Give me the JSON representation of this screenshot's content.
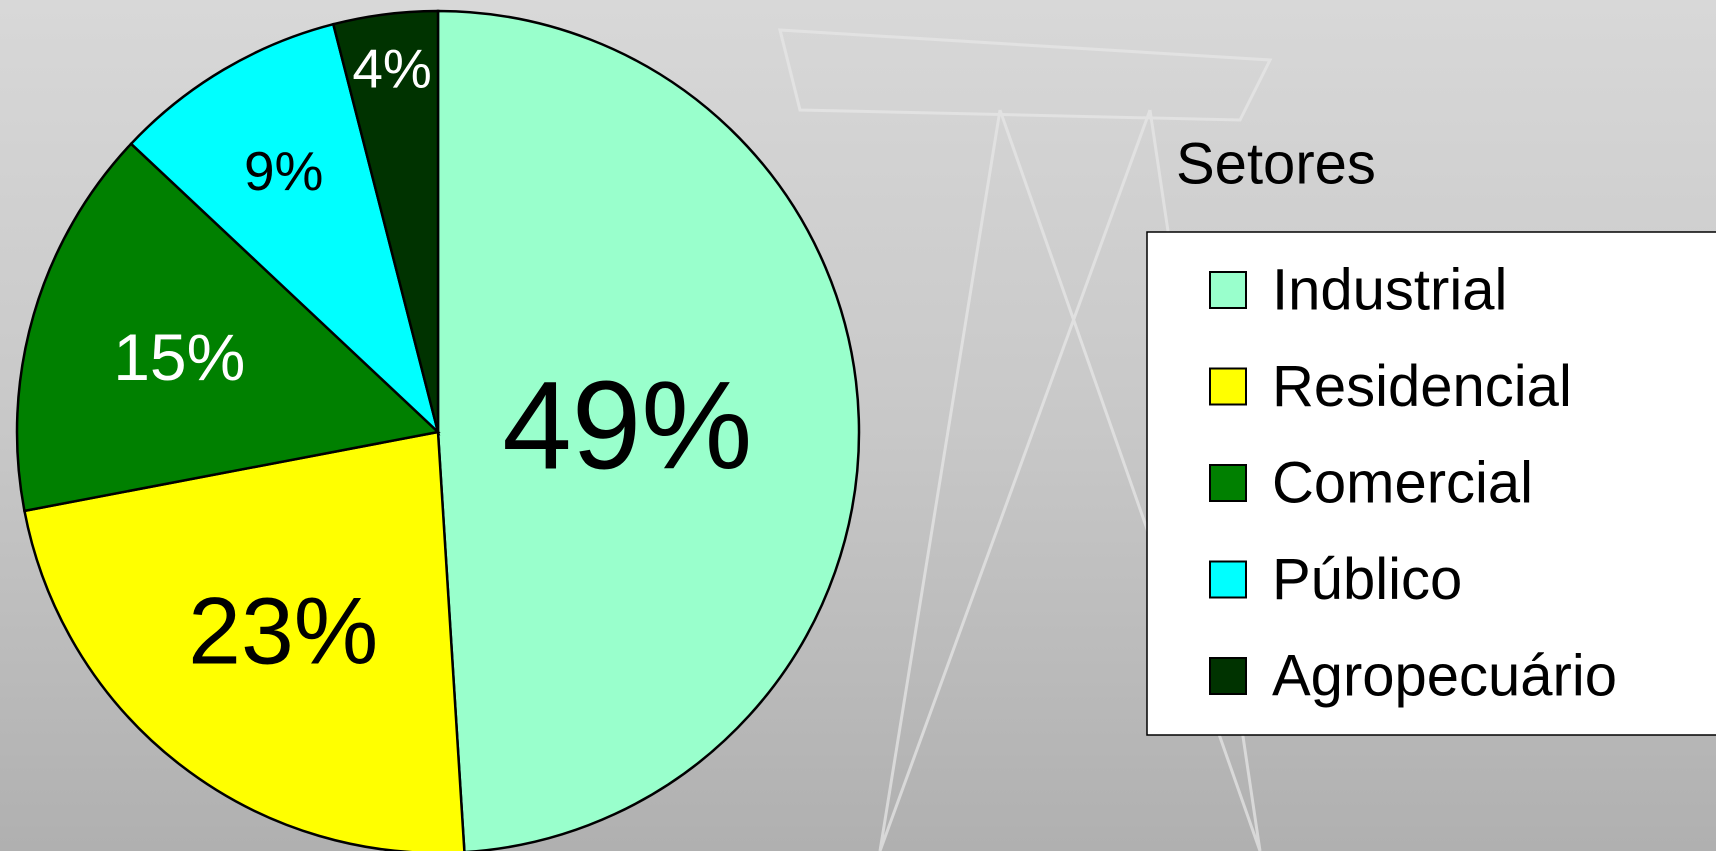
{
  "chart_data": {
    "type": "pie",
    "legend_title": "Setores",
    "categories": [
      "Industrial",
      "Residencial",
      "Comercial",
      "Público",
      "Agropecuário"
    ],
    "values": [
      49,
      23,
      15,
      9,
      4
    ],
    "value_labels": [
      "49%",
      "23%",
      "15%",
      "9%",
      "4%"
    ],
    "colors": [
      "#99ffcc",
      "#ffff00",
      "#008000",
      "#00ffff",
      "#003300"
    ],
    "legend": "right"
  }
}
